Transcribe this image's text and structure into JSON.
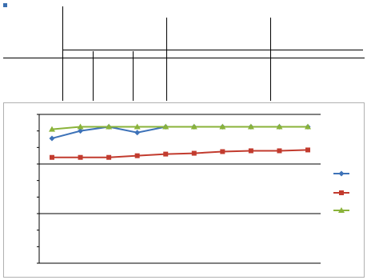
{
  "table": {
    "corner_title": "",
    "row_label": "",
    "top_marker": "",
    "zones": [
      {
        "name": "",
        "sub": ""
      },
      {
        "name": "",
        "sub": ""
      },
      {
        "name": "",
        "sub": ""
      }
    ],
    "subheaders": [
      "",
      "",
      "",
      "",
      "",
      "",
      "",
      "",
      "",
      "",
      "",
      ""
    ],
    "rows": [
      {
        "label": "",
        "label_color": "#3366aa",
        "cells": [
          "",
          "",
          "",
          "",
          "",
          "",
          "",
          "",
          "",
          "",
          "",
          ""
        ]
      },
      {
        "label": "",
        "label_color": "#c0392b",
        "cells": [
          "",
          "",
          "",
          "",
          "",
          "",
          "",
          "",
          "",
          "",
          "",
          ""
        ]
      },
      {
        "label": "",
        "label_color": "#7a9a2a",
        "cells": [
          "",
          "",
          "",
          "",
          "",
          "",
          "",
          "",
          "",
          "",
          "",
          ""
        ]
      }
    ]
  },
  "chart_data": {
    "type": "line",
    "ylim": [
      0,
      9
    ],
    "y_ticks": [
      {
        "value": 0,
        "label": ""
      },
      {
        "value": 1,
        "label": ""
      },
      {
        "value": 2,
        "label": ""
      },
      {
        "value": 3,
        "label": ""
      },
      {
        "value": 4,
        "label": ""
      },
      {
        "value": 5,
        "label": ""
      },
      {
        "value": 6,
        "label": ""
      },
      {
        "value": 7,
        "label": ""
      },
      {
        "value": 8,
        "label": ""
      },
      {
        "value": 9,
        "label": ""
      }
    ],
    "horizontal_gridlines": [
      3,
      6,
      9
    ],
    "x": [
      "",
      "",
      "",
      "",
      "",
      "",
      "",
      "",
      "",
      ""
    ],
    "series": [
      {
        "name": "",
        "color": "#3d72b8",
        "marker": "diamond",
        "values": [
          7.55,
          8.0,
          8.25,
          7.9,
          8.25,
          8.25,
          8.25,
          8.25,
          8.25,
          8.25
        ]
      },
      {
        "name": "",
        "color": "#c23b2e",
        "marker": "square",
        "values": [
          6.4,
          6.4,
          6.4,
          6.5,
          6.6,
          6.65,
          6.75,
          6.8,
          6.8,
          6.85
        ]
      },
      {
        "name": "",
        "color": "#8ab33a",
        "marker": "triangle",
        "values": [
          8.1,
          8.25,
          8.25,
          8.25,
          8.25,
          8.25,
          8.25,
          8.25,
          8.25,
          8.25
        ]
      }
    ],
    "legend_position": "right"
  }
}
